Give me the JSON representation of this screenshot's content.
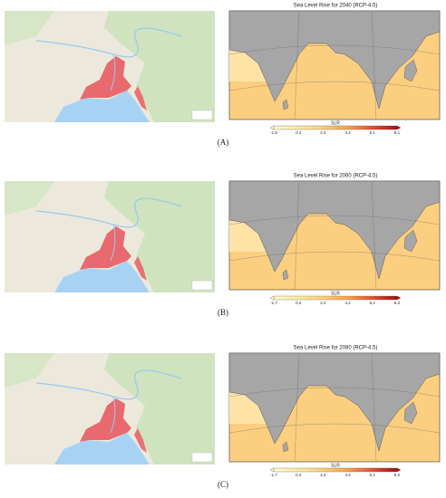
{
  "panels": [
    {
      "title": "Sea Level Rise for 2040 (RCP-4.5)",
      "colorbar_label": "SLR",
      "colorbar_ticks": [
        "-1.8",
        "0.2",
        "2.2",
        "4.2",
        "6.1",
        "8.1"
      ],
      "label": "(A)"
    },
    {
      "title": "Sea Level Rise for 2060 (RCP-4.5)",
      "colorbar_label": "SLR",
      "colorbar_ticks": [
        "-1.7",
        "0.2",
        "2.2",
        "4.2",
        "6.2",
        "8.2"
      ],
      "label": "(B)"
    },
    {
      "title": "Sea Level Rise for 2080 (RCP-4.5)",
      "colorbar_label": "SLR",
      "colorbar_ticks": [
        "-1.7",
        "0.2",
        "2.2",
        "4.2",
        "6.2",
        "8.2"
      ],
      "label": "(C)"
    }
  ]
}
